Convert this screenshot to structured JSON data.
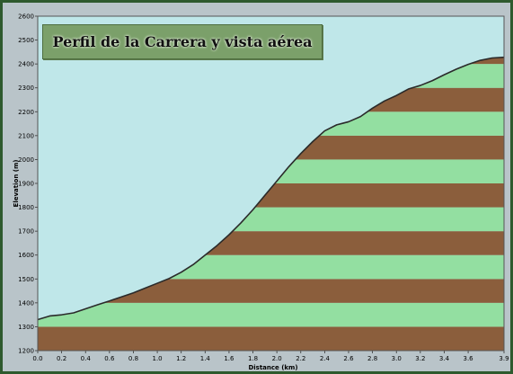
{
  "chart_data": {
    "type": "area",
    "title": "Perfil de la Carrera y vista aérea",
    "xlabel": "Distance  (km)",
    "ylabel": "Elevation (m)",
    "xlim": [
      0.0,
      3.9
    ],
    "ylim": [
      1200,
      2600
    ],
    "x_ticks": [
      "0.0",
      "0.2",
      "0.4",
      "0.6",
      "0.8",
      "1.0",
      "1.2",
      "1.4",
      "1.6",
      "1.8",
      "2.0",
      "2.2",
      "2.4",
      "2.6",
      "2.8",
      "3.0",
      "3.2",
      "3.4",
      "3.6",
      "3.9"
    ],
    "y_ticks": [
      "1200",
      "1300",
      "1400",
      "1500",
      "1600",
      "1700",
      "1800",
      "1900",
      "2000",
      "2100",
      "2200",
      "2300",
      "2400",
      "2500",
      "2600"
    ],
    "band_height_m": 100,
    "colors": {
      "sky": "#bfe7e9",
      "band_brown": "#8b5e3c",
      "band_green": "#93dfa1",
      "profile_line": "#2a2a2a"
    },
    "series": [
      {
        "x": [
          0.0,
          0.1,
          0.2,
          0.3,
          0.4,
          0.5,
          0.6,
          0.7,
          0.8,
          0.9,
          1.0,
          1.1,
          1.2,
          1.3,
          1.4,
          1.5,
          1.6,
          1.7,
          1.8,
          1.9,
          2.0,
          2.1,
          2.2,
          2.3,
          2.4,
          2.5,
          2.6,
          2.7,
          2.8,
          2.9,
          3.0,
          3.1,
          3.2,
          3.3,
          3.4,
          3.5,
          3.6,
          3.7,
          3.8,
          3.9
        ],
        "y": [
          1330,
          1345,
          1350,
          1358,
          1375,
          1392,
          1408,
          1425,
          1442,
          1462,
          1482,
          1502,
          1528,
          1560,
          1600,
          1640,
          1685,
          1735,
          1790,
          1850,
          1910,
          1970,
          2025,
          2075,
          2120,
          2145,
          2158,
          2180,
          2215,
          2245,
          2268,
          2295,
          2310,
          2330,
          2355,
          2378,
          2398,
          2415,
          2425,
          2428
        ]
      }
    ]
  }
}
